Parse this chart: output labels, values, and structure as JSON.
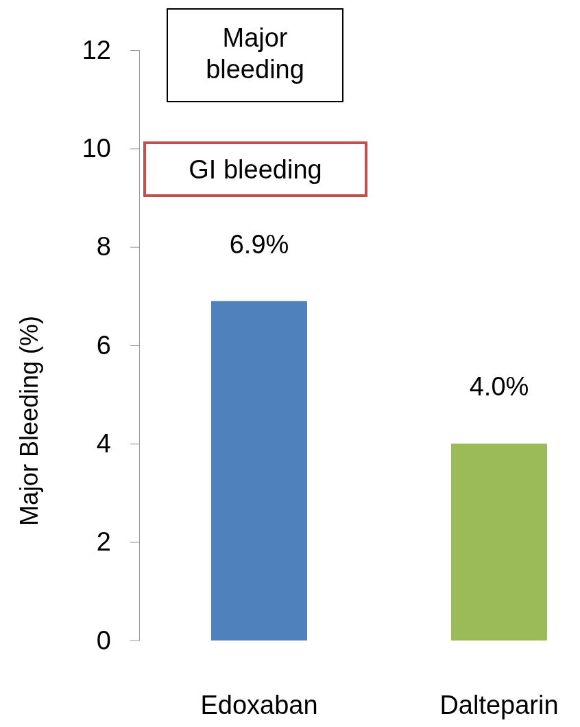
{
  "chart_data": {
    "type": "bar",
    "ylabel": "Major Bleeding (%)",
    "categories": [
      "Edoxaban",
      "Dalteparin"
    ],
    "values": [
      6.9,
      4.0
    ],
    "colors": [
      "#4f81bd",
      "#9bbb59"
    ],
    "value_labels": [
      "6.9%",
      "4.0%"
    ],
    "ylim": [
      0,
      12
    ],
    "yticks": [
      0,
      2,
      4,
      6,
      8,
      10,
      12
    ],
    "annotations": [
      "Major bleeding",
      "GI bleeding"
    ],
    "grid": false
  }
}
